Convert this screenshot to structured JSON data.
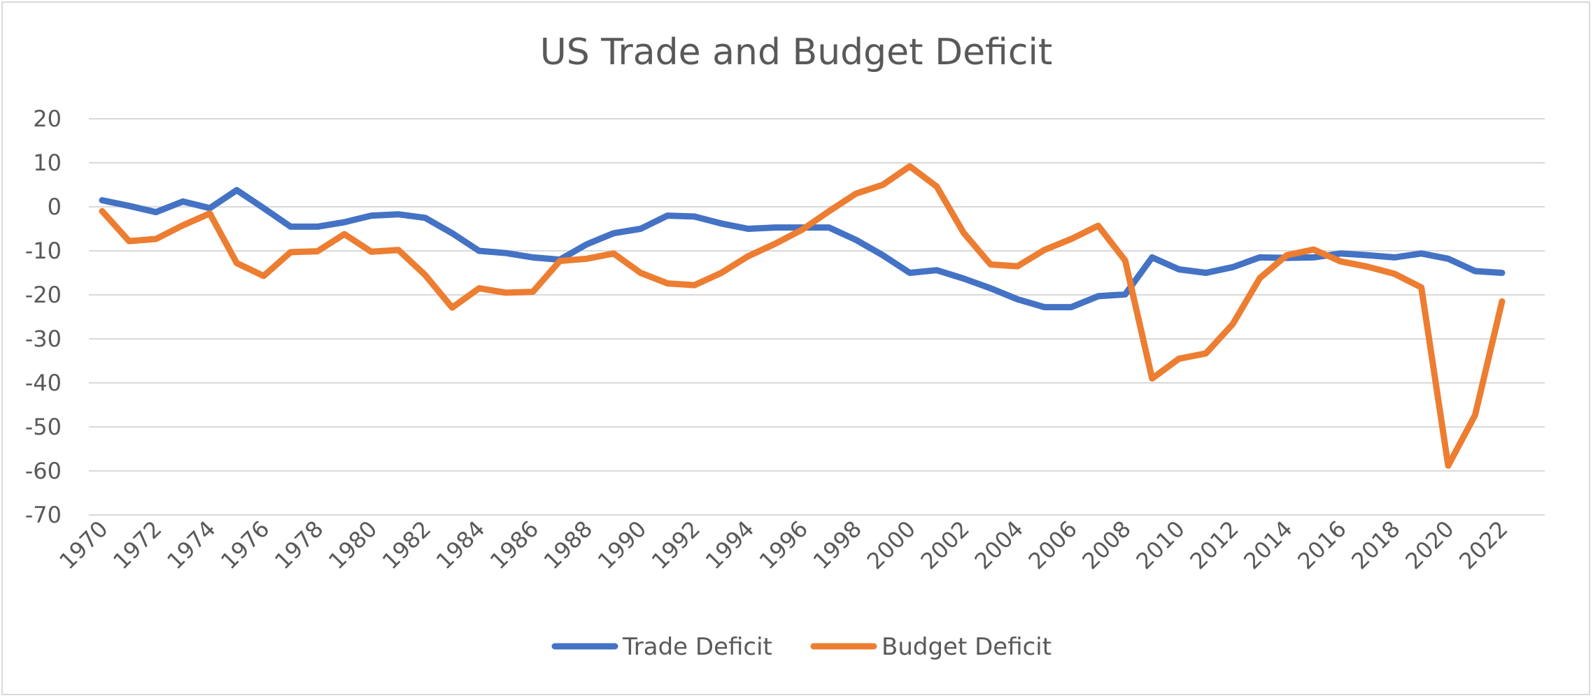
{
  "chart_data": {
    "type": "line",
    "title": "US Trade and Budget Deficit",
    "xlabel": "",
    "ylabel": "",
    "ylim": [
      -70,
      20
    ],
    "yticks": [
      20,
      10,
      0,
      -10,
      -20,
      -30,
      -40,
      -50,
      -60,
      -70
    ],
    "grid": true,
    "legend_position": "bottom",
    "x": [
      1970,
      1971,
      1972,
      1973,
      1974,
      1975,
      1976,
      1977,
      1978,
      1979,
      1980,
      1981,
      1982,
      1983,
      1984,
      1985,
      1986,
      1987,
      1988,
      1989,
      1990,
      1991,
      1992,
      1993,
      1994,
      1995,
      1996,
      1997,
      1998,
      1999,
      2000,
      2001,
      2002,
      2003,
      2004,
      2005,
      2006,
      2007,
      2008,
      2009,
      2010,
      2011,
      2012,
      2013,
      2014,
      2015,
      2016,
      2017,
      2018,
      2019,
      2020,
      2021,
      2022
    ],
    "xtick_labels": [
      "1970",
      "1972",
      "1974",
      "1976",
      "1978",
      "1980",
      "1982",
      "1984",
      "1986",
      "1988",
      "1990",
      "1992",
      "1994",
      "1996",
      "1998",
      "2000",
      "2002",
      "2004",
      "2006",
      "2008",
      "2010",
      "2012",
      "2014",
      "2016",
      "2018",
      "2020",
      "2022"
    ],
    "series": [
      {
        "name": "Trade Deficit",
        "color": "#4472C4",
        "values": [
          1.5,
          0.2,
          -1.2,
          1.2,
          -0.3,
          3.8,
          -0.3,
          -4.5,
          -4.5,
          -3.5,
          -2.0,
          -1.7,
          -2.5,
          -6.0,
          -10.0,
          -10.5,
          -11.5,
          -12.0,
          -8.5,
          -6.0,
          -5.0,
          -2.0,
          -2.2,
          -3.8,
          -5.0,
          -4.7,
          -4.7,
          -4.7,
          -7.5,
          -11.0,
          -15.0,
          -14.4,
          -16.3,
          -18.5,
          -21.0,
          -22.8,
          -22.8,
          -20.3,
          -19.9,
          -11.5,
          -14.2,
          -15.0,
          -13.7,
          -11.5,
          -11.6,
          -11.5,
          -10.6,
          -11.0,
          -11.5,
          -10.6,
          -11.8,
          -14.6,
          -15.0
        ]
      },
      {
        "name": "Budget Deficit",
        "color": "#ED7D31",
        "values": [
          -1.0,
          -7.8,
          -7.3,
          -4.2,
          -1.5,
          -12.8,
          -15.7,
          -10.3,
          -10.1,
          -6.2,
          -10.2,
          -9.8,
          -15.5,
          -22.9,
          -18.5,
          -19.5,
          -19.3,
          -12.3,
          -11.8,
          -10.6,
          -15.0,
          -17.4,
          -17.8,
          -15.0,
          -11.2,
          -8.4,
          -5.2,
          -1.0,
          3.0,
          5.0,
          9.2,
          4.6,
          -5.9,
          -13.1,
          -13.5,
          -9.8,
          -7.3,
          -4.3,
          -12.2,
          -39.0,
          -34.5,
          -33.3,
          -26.6,
          -16.2,
          -11.0,
          -9.7,
          -12.4,
          -13.6,
          -15.2,
          -18.3,
          -58.8,
          -47.3,
          -21.5
        ]
      }
    ]
  }
}
